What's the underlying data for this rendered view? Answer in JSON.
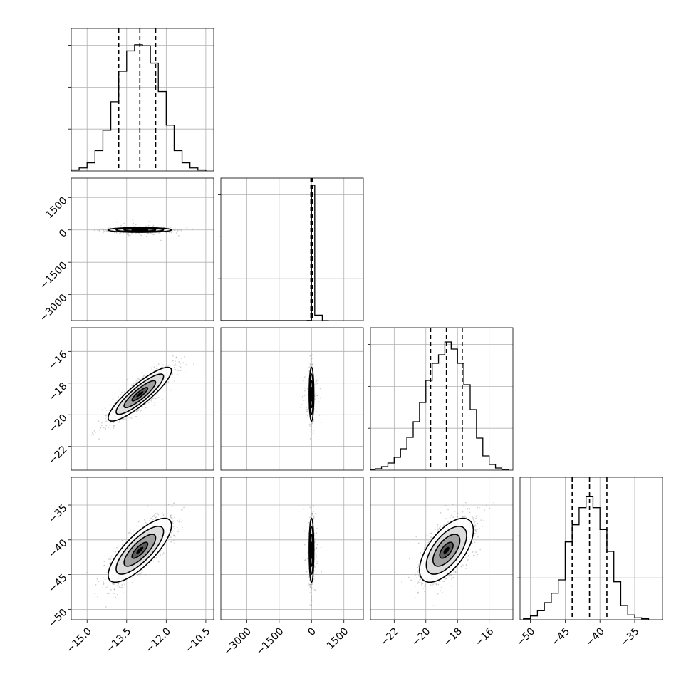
{
  "chart_data": {
    "type": "corner",
    "n_params": 4,
    "grid": true,
    "colors": {
      "line": "#000000",
      "grid": "#b0b0b0",
      "points": "#7a7a7a",
      "fill": "#000000"
    },
    "params": [
      {
        "range": [
          -15.6,
          -10.2
        ],
        "ticks": [
          -15.0,
          -13.5,
          -12.0,
          -10.5
        ],
        "tick_labels": [
          "−15.0",
          "−13.5",
          "−12.0",
          "−10.5"
        ],
        "median": -13.0,
        "std": 0.6
      },
      {
        "range": [
          -4200,
          2400
        ],
        "ticks": [
          -3000,
          -1500,
          0,
          1500
        ],
        "tick_labels": [
          "−3000",
          "−1500",
          "0",
          "1500"
        ],
        "median": 0,
        "std": 55
      },
      {
        "range": [
          -23.5,
          -14.5
        ],
        "ticks": [
          -22,
          -20,
          -18,
          -16
        ],
        "tick_labels": [
          "−22",
          "−20",
          "−18",
          "−16"
        ],
        "median": -18.7,
        "std": 0.85
      },
      {
        "range": [
          -51.5,
          -31.0
        ],
        "ticks": [
          -50,
          -45,
          -40,
          -35
        ],
        "tick_labels": [
          "−50",
          "−45",
          "−40",
          "−35"
        ],
        "median": -41.5,
        "std": 2.3
      }
    ],
    "histograms": [
      {
        "param": 0,
        "bins": [
          [
            -15.6,
            -15.3,
            1
          ],
          [
            -15.3,
            -15.0,
            3
          ],
          [
            -15.0,
            -14.7,
            8
          ],
          [
            -14.7,
            -14.4,
            20
          ],
          [
            -14.4,
            -14.1,
            40
          ],
          [
            -14.1,
            -13.8,
            68
          ],
          [
            -13.8,
            -13.5,
            98
          ],
          [
            -13.5,
            -13.2,
            118
          ],
          [
            -13.2,
            -12.9,
            124
          ],
          [
            -12.9,
            -12.6,
            123
          ],
          [
            -12.6,
            -12.3,
            106
          ],
          [
            -12.3,
            -12.0,
            78
          ],
          [
            -12.0,
            -11.7,
            45
          ],
          [
            -11.7,
            -11.4,
            20
          ],
          [
            -11.4,
            -11.1,
            8
          ],
          [
            -11.1,
            -10.8,
            3
          ],
          [
            -10.8,
            -10.5,
            1
          ]
        ],
        "ymax": 140,
        "quantiles": [
          -13.8,
          -13.0,
          -12.4
        ]
      },
      {
        "param": 1,
        "bins": [
          [
            -4200,
            -3800,
            0
          ],
          [
            -3800,
            -3400,
            0
          ],
          [
            -3400,
            -3000,
            0
          ],
          [
            -3000,
            -2600,
            0
          ],
          [
            -2600,
            -2200,
            0
          ],
          [
            -2200,
            -1800,
            0
          ],
          [
            -1800,
            -1400,
            0
          ],
          [
            -1400,
            -1000,
            0
          ],
          [
            -1000,
            -600,
            0
          ],
          [
            -600,
            -200,
            0
          ],
          [
            -200,
            0,
            1
          ],
          [
            0,
            150,
            1045
          ],
          [
            150,
            500,
            42
          ],
          [
            500,
            800,
            0
          ]
        ],
        "ymax": 1100,
        "quantiles": [
          -30,
          0,
          30
        ]
      },
      {
        "param": 2,
        "bins": [
          [
            -23.6,
            -23.2,
            1
          ],
          [
            -23.2,
            -22.8,
            2
          ],
          [
            -22.8,
            -22.4,
            5
          ],
          [
            -22.4,
            -22.0,
            10
          ],
          [
            -22.0,
            -21.6,
            18
          ],
          [
            -21.6,
            -21.2,
            30
          ],
          [
            -21.2,
            -20.8,
            46
          ],
          [
            -20.8,
            -20.4,
            68
          ],
          [
            -20.4,
            -20.0,
            95
          ],
          [
            -20.0,
            -19.6,
            126
          ],
          [
            -19.6,
            -19.2,
            150
          ],
          [
            -19.2,
            -18.8,
            162
          ],
          [
            -18.8,
            -18.4,
            180
          ],
          [
            -18.4,
            -18.0,
            170
          ],
          [
            -18.0,
            -17.6,
            150
          ],
          [
            -17.6,
            -17.2,
            120
          ],
          [
            -17.2,
            -16.8,
            85
          ],
          [
            -16.8,
            -16.4,
            45
          ],
          [
            -16.4,
            -16.0,
            20
          ],
          [
            -16.0,
            -15.6,
            8
          ],
          [
            -15.6,
            -15.2,
            3
          ],
          [
            -15.2,
            -14.8,
            1
          ]
        ],
        "ymax": 200,
        "quantiles": [
          -19.7,
          -18.7,
          -17.7
        ]
      },
      {
        "param": 3,
        "bins": [
          [
            -51.0,
            -50.0,
            1
          ],
          [
            -50.0,
            -49.0,
            4
          ],
          [
            -49.0,
            -48.0,
            10
          ],
          [
            -48.0,
            -47.0,
            18
          ],
          [
            -47.0,
            -46.0,
            28
          ],
          [
            -46.0,
            -45.0,
            42
          ],
          [
            -45.0,
            -44.0,
            82
          ],
          [
            -44.0,
            -43.0,
            100
          ],
          [
            -43.0,
            -42.0,
            118
          ],
          [
            -42.0,
            -41.0,
            130
          ],
          [
            -41.0,
            -40.0,
            118
          ],
          [
            -40.0,
            -39.0,
            95
          ],
          [
            -39.0,
            -38.0,
            72
          ],
          [
            -38.0,
            -37.0,
            40
          ],
          [
            -37.0,
            -36.0,
            15
          ],
          [
            -36.0,
            -35.0,
            5
          ],
          [
            -35.0,
            -34.0,
            2
          ],
          [
            -34.0,
            -33.0,
            1
          ]
        ],
        "ymax": 150,
        "quantiles": [
          -44.0,
          -41.5,
          -39.0
        ]
      }
    ],
    "pairs": [
      {
        "x": 0,
        "y": 1,
        "corr": 0.0,
        "point_count": 700,
        "seed": 11
      },
      {
        "x": 0,
        "y": 2,
        "corr": 0.88,
        "point_count": 1200,
        "seed": 23
      },
      {
        "x": 1,
        "y": 2,
        "corr": 0.0,
        "point_count": 700,
        "seed": 37
      },
      {
        "x": 0,
        "y": 3,
        "corr": 0.78,
        "point_count": 1200,
        "seed": 41
      },
      {
        "x": 1,
        "y": 3,
        "corr": 0.0,
        "point_count": 700,
        "seed": 53
      },
      {
        "x": 2,
        "y": 3,
        "corr": 0.62,
        "point_count": 1200,
        "seed": 67
      }
    ],
    "contour_levels_sigma": [
      0.5,
      1.0,
      1.5,
      2.0
    ]
  }
}
